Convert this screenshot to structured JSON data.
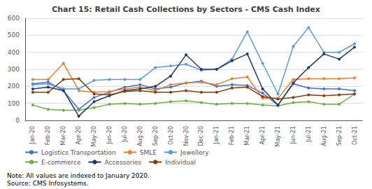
{
  "chart_data": {
    "type": "line",
    "title": "Chart 15: Retail Cash Collections by Sectors - CMS Cash Index",
    "annotations": [
      "Note: All values are indexed to January 2020.\nSource: CMS Infosystems."
    ],
    "categories": [
      "Jan-20",
      "Feb-20",
      "Mar-20",
      "Apr-20",
      "May-20",
      "Jun-20",
      "Jul-20",
      "Aug-20",
      "Sep-20",
      "Oct-20",
      "Nov-20",
      "Dec-20",
      "Jan-21",
      "Feb-21",
      "Mar-21",
      "Apr-21",
      "May-21",
      "Jun-21",
      "Jul-21",
      "Aug-21",
      "Sep-21",
      "Oct-21"
    ],
    "series": [
      {
        "name": "Logistics Transportation",
        "color": "#4472C4",
        "marker": "circle",
        "values": [
          215,
          225,
          175,
          65,
          135,
          165,
          195,
          210,
          185,
          195,
          220,
          230,
          200,
          210,
          205,
          160,
          90,
          215,
          190,
          185,
          185,
          175
        ]
      },
      {
        "name": "SMLE",
        "color": "#ED7D31",
        "marker": "circle",
        "values": [
          240,
          240,
          335,
          175,
          165,
          170,
          185,
          195,
          175,
          210,
          220,
          225,
          210,
          245,
          255,
          130,
          130,
          240,
          245,
          245,
          245,
          250
        ]
      },
      {
        "name": "Jewellery",
        "color": "#5B9BD5",
        "marker": "circle",
        "values": [
          210,
          215,
          185,
          185,
          235,
          240,
          240,
          240,
          310,
          320,
          330,
          295,
          300,
          360,
          520,
          335,
          155,
          435,
          545,
          400,
          400,
          450
        ]
      },
      {
        "name": "E-commerce",
        "color": "#70AD47",
        "marker": "circle",
        "values": [
          90,
          65,
          60,
          60,
          75,
          95,
          100,
          95,
          100,
          110,
          115,
          105,
          95,
          100,
          100,
          90,
          85,
          105,
          110,
          95,
          95,
          155
        ]
      },
      {
        "name": "Accessories",
        "color": "#1F3864",
        "marker": "circle",
        "values": [
          185,
          195,
          175,
          25,
          110,
          145,
          175,
          185,
          200,
          260,
          385,
          300,
          300,
          350,
          390,
          185,
          90,
          220,
          310,
          390,
          360,
          430
        ]
      },
      {
        "name": "Individual",
        "color": "#843C0C",
        "marker": "circle",
        "values": [
          165,
          165,
          240,
          245,
          155,
          150,
          170,
          175,
          165,
          165,
          175,
          165,
          165,
          190,
          195,
          140,
          125,
          135,
          150,
          145,
          150,
          155
        ]
      }
    ],
    "ylim": [
      0,
      600
    ],
    "yticks": [
      0,
      100,
      200,
      300,
      400,
      500,
      600
    ],
    "grid": true,
    "legend": "bottom"
  }
}
